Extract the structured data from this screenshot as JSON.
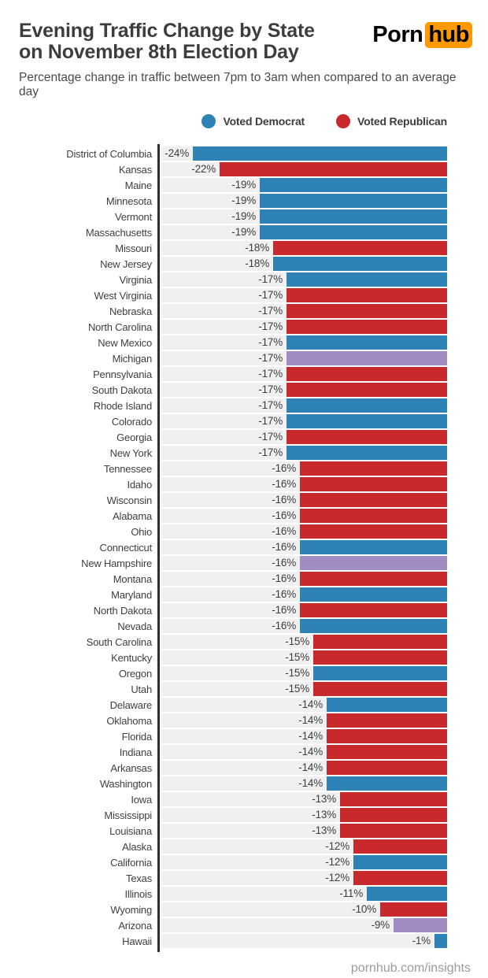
{
  "header": {
    "title_line1": "Evening Traffic Change by State",
    "title_line2": "on November 8th Election Day",
    "subtitle": "Percentage change in traffic between 7pm to 3am when compared to an average day",
    "logo": {
      "part1": "Porn",
      "part2": "hub"
    }
  },
  "legend": [
    {
      "key": "democrat",
      "label": "Voted Democrat",
      "color": "#2e82b5"
    },
    {
      "key": "republican",
      "label": "Voted Republican",
      "color": "#c8292d"
    }
  ],
  "colors": {
    "democrat": "#2e82b5",
    "republican": "#c8292d",
    "undecided": "#a18cc2",
    "track": "#f0f0f0",
    "axis": "#2f2f2f",
    "logo_accent": "#ff9900"
  },
  "footer": {
    "credit": "pornhub.com/insights"
  },
  "chart_data": {
    "type": "bar",
    "orientation": "horizontal",
    "title": "Evening Traffic Change by State on November 8th Election Day",
    "subtitle": "Percentage change in traffic between 7pm to 3am when compared to an average day",
    "value_unit": "%",
    "legend_position": "top-right",
    "grid": false,
    "bar_anchor": "right",
    "categories_note": "party color: democrat=blue, republican=red, undecided=purple",
    "states": [
      {
        "name": "District of Columbia",
        "value": -24,
        "label": "-24%",
        "party": "democrat"
      },
      {
        "name": "Kansas",
        "value": -22,
        "label": "-22%",
        "party": "republican"
      },
      {
        "name": "Maine",
        "value": -19,
        "label": "-19%",
        "party": "democrat"
      },
      {
        "name": "Minnesota",
        "value": -19,
        "label": "-19%",
        "party": "democrat"
      },
      {
        "name": "Vermont",
        "value": -19,
        "label": "-19%",
        "party": "democrat"
      },
      {
        "name": "Massachusetts",
        "value": -19,
        "label": "-19%",
        "party": "democrat"
      },
      {
        "name": "Missouri",
        "value": -18,
        "label": "-18%",
        "party": "republican"
      },
      {
        "name": "New Jersey",
        "value": -18,
        "label": "-18%",
        "party": "democrat"
      },
      {
        "name": "Virginia",
        "value": -17,
        "label": "-17%",
        "party": "democrat"
      },
      {
        "name": "West Virginia",
        "value": -17,
        "label": "-17%",
        "party": "republican"
      },
      {
        "name": "Nebraska",
        "value": -17,
        "label": "-17%",
        "party": "republican"
      },
      {
        "name": "North Carolina",
        "value": -17,
        "label": "-17%",
        "party": "republican"
      },
      {
        "name": "New Mexico",
        "value": -17,
        "label": "-17%",
        "party": "democrat"
      },
      {
        "name": "Michigan",
        "value": -17,
        "label": "-17%",
        "party": "undecided"
      },
      {
        "name": "Pennsylvania",
        "value": -17,
        "label": "-17%",
        "party": "republican"
      },
      {
        "name": "South Dakota",
        "value": -17,
        "label": "-17%",
        "party": "republican"
      },
      {
        "name": "Rhode Island",
        "value": -17,
        "label": "-17%",
        "party": "democrat"
      },
      {
        "name": "Colorado",
        "value": -17,
        "label": "-17%",
        "party": "democrat"
      },
      {
        "name": "Georgia",
        "value": -17,
        "label": "-17%",
        "party": "republican"
      },
      {
        "name": "New York",
        "value": -17,
        "label": "-17%",
        "party": "democrat"
      },
      {
        "name": "Tennessee",
        "value": -16,
        "label": "-16%",
        "party": "republican"
      },
      {
        "name": "Idaho",
        "value": -16,
        "label": "-16%",
        "party": "republican"
      },
      {
        "name": "Wisconsin",
        "value": -16,
        "label": "-16%",
        "party": "republican"
      },
      {
        "name": "Alabama",
        "value": -16,
        "label": "-16%",
        "party": "republican"
      },
      {
        "name": "Ohio",
        "value": -16,
        "label": "-16%",
        "party": "republican"
      },
      {
        "name": "Connecticut",
        "value": -16,
        "label": "-16%",
        "party": "democrat"
      },
      {
        "name": "New Hampshire",
        "value": -16,
        "label": "-16%",
        "party": "undecided"
      },
      {
        "name": "Montana",
        "value": -16,
        "label": "-16%",
        "party": "republican"
      },
      {
        "name": "Maryland",
        "value": -16,
        "label": "-16%",
        "party": "democrat"
      },
      {
        "name": "North Dakota",
        "value": -16,
        "label": "-16%",
        "party": "republican"
      },
      {
        "name": "Nevada",
        "value": -16,
        "label": "-16%",
        "party": "democrat"
      },
      {
        "name": "South Carolina",
        "value": -15,
        "label": "-15%",
        "party": "republican"
      },
      {
        "name": "Kentucky",
        "value": -15,
        "label": "-15%",
        "party": "republican"
      },
      {
        "name": "Oregon",
        "value": -15,
        "label": "-15%",
        "party": "democrat"
      },
      {
        "name": "Utah",
        "value": -15,
        "label": "-15%",
        "party": "republican"
      },
      {
        "name": "Delaware",
        "value": -14,
        "label": "-14%",
        "party": "democrat"
      },
      {
        "name": "Oklahoma",
        "value": -14,
        "label": "-14%",
        "party": "republican"
      },
      {
        "name": "Florida",
        "value": -14,
        "label": "-14%",
        "party": "republican"
      },
      {
        "name": "Indiana",
        "value": -14,
        "label": "-14%",
        "party": "republican"
      },
      {
        "name": "Arkansas",
        "value": -14,
        "label": "-14%",
        "party": "republican"
      },
      {
        "name": "Washington",
        "value": -14,
        "label": "-14%",
        "party": "democrat"
      },
      {
        "name": "Iowa",
        "value": -13,
        "label": "-13%",
        "party": "republican"
      },
      {
        "name": "Mississippi",
        "value": -13,
        "label": "-13%",
        "party": "republican"
      },
      {
        "name": "Louisiana",
        "value": -13,
        "label": "-13%",
        "party": "republican"
      },
      {
        "name": "Alaska",
        "value": -12,
        "label": "-12%",
        "party": "republican"
      },
      {
        "name": "California",
        "value": -12,
        "label": "-12%",
        "party": "democrat"
      },
      {
        "name": "Texas",
        "value": -12,
        "label": "-12%",
        "party": "republican"
      },
      {
        "name": "Illinois",
        "value": -11,
        "label": "-11%",
        "party": "democrat"
      },
      {
        "name": "Wyoming",
        "value": -10,
        "label": "-10%",
        "party": "republican"
      },
      {
        "name": "Arizona",
        "value": -9,
        "label": "-9%",
        "party": "undecided"
      },
      {
        "name": "Hawaii",
        "value": -1,
        "label": "-1%",
        "party": "democrat"
      }
    ]
  }
}
